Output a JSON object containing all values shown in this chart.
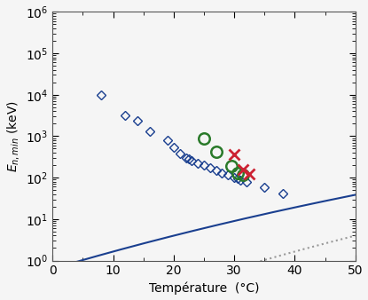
{
  "title": "",
  "xlabel": "Température  (°C)",
  "ylabel": "$E_{n,min}$ (keV)",
  "xlim": [
    0,
    50
  ],
  "ylim": [
    1,
    1000000
  ],
  "curve_1atm": {
    "color": "#1a3f8f",
    "style": "-",
    "linewidth": 1.5,
    "A": 9.8,
    "B": 2300,
    "C": 230
  },
  "curve_14atm": {
    "color": "#999999",
    "style": ":",
    "linewidth": 1.5,
    "A": 9.8,
    "B": 2300,
    "C": 200
  },
  "curve_17atm": {
    "color": "#cc2233",
    "style": "-.",
    "linewidth": 1.8,
    "A": 9.8,
    "B": 2300,
    "C": 178,
    "T_start": 16
  },
  "data_1atm": {
    "T": [
      8,
      12,
      14,
      16,
      19,
      20,
      21,
      22,
      22.5,
      23,
      24,
      25,
      26,
      27,
      28,
      29,
      30,
      30.5,
      31,
      32,
      35,
      38
    ],
    "E": [
      10000,
      3200,
      2400,
      1300,
      800,
      530,
      380,
      300,
      280,
      260,
      220,
      200,
      170,
      150,
      130,
      115,
      100,
      95,
      88,
      80,
      58,
      42
    ],
    "marker": "D",
    "color": "#1a3f8f",
    "markersize": 5,
    "mfc": "none",
    "mew": 1.0
  },
  "data_14atm": {
    "T": [
      25,
      27,
      29.5,
      30.5,
      31.5
    ],
    "E": [
      900,
      430,
      190,
      130,
      115
    ],
    "marker": "o",
    "color": "#2a7a2a",
    "markersize": 9,
    "mfc": "none",
    "mew": 1.8
  },
  "data_17atm": {
    "T": [
      30,
      31.5,
      32.5
    ],
    "E": [
      370,
      155,
      125
    ],
    "marker": "x",
    "color": "#cc2233",
    "markersize": 8,
    "mew": 2.0
  },
  "background": "#f5f5f5"
}
